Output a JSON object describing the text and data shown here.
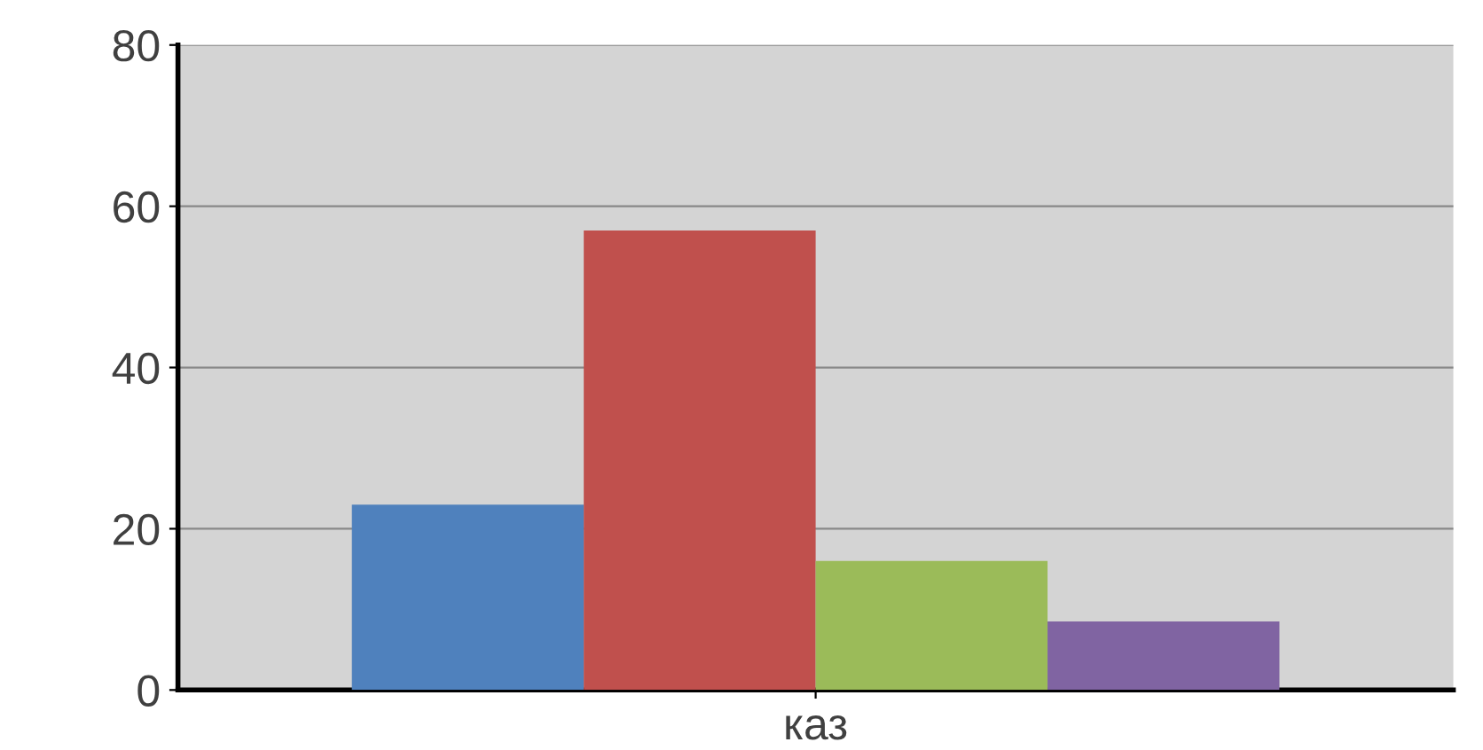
{
  "chart_data": {
    "type": "bar",
    "categories": [
      "каз"
    ],
    "series": [
      {
        "color": "#4f81bd",
        "values": [
          23
        ]
      },
      {
        "color": "#c0504d",
        "values": [
          57
        ]
      },
      {
        "color": "#9bbb59",
        "values": [
          16
        ]
      },
      {
        "color": "#8064a2",
        "values": [
          8.5
        ]
      }
    ],
    "ylim": [
      0,
      80
    ],
    "yticks": [
      0,
      20,
      40,
      60,
      80
    ],
    "grid": "y",
    "legend": false
  }
}
